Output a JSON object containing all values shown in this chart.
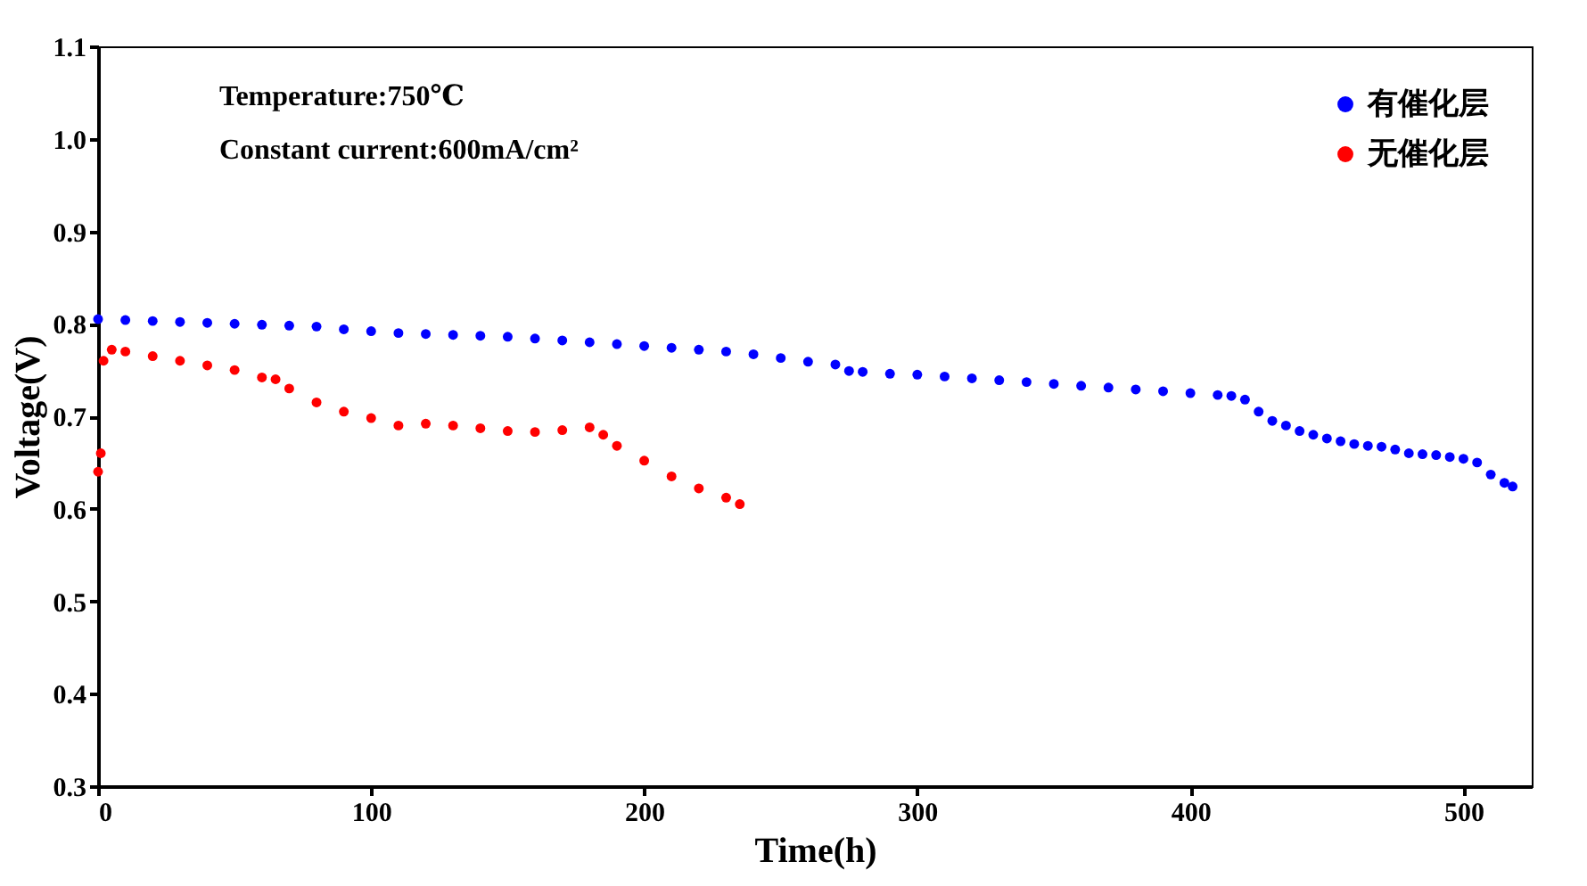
{
  "chart_data": {
    "type": "scatter",
    "xlabel": "Time(h)",
    "ylabel": "Voltage(V)",
    "annotations": [
      "Temperature:750℃",
      "Constant current:600mA/cm²"
    ],
    "xlim": [
      0,
      525
    ],
    "xticks": [
      0,
      100,
      200,
      300,
      400,
      500
    ],
    "ylim": [
      0.3,
      1.1
    ],
    "yticks": [
      {
        "value": 0.3,
        "label": "0.3"
      },
      {
        "value": 0.4,
        "label": "0.4"
      },
      {
        "value": 0.5,
        "label": "0.5"
      },
      {
        "value": 0.6,
        "label": "0.6"
      },
      {
        "value": 0.7,
        "label": "0.7"
      },
      {
        "value": 0.8,
        "label": "0.8"
      },
      {
        "value": 0.9,
        "label": "0.9"
      },
      {
        "value": 1.0,
        "label": "1.0"
      },
      {
        "value": 1.1,
        "label": "1.1"
      }
    ],
    "grid": false,
    "legend": "top right",
    "marker": "circle",
    "series": [
      {
        "name": "有催化层",
        "color": "#0000ff",
        "x": [
          0,
          10,
          20,
          30,
          40,
          50,
          60,
          70,
          80,
          90,
          100,
          110,
          120,
          130,
          140,
          150,
          160,
          170,
          180,
          190,
          200,
          210,
          220,
          230,
          240,
          250,
          260,
          270,
          275,
          280,
          290,
          300,
          310,
          320,
          330,
          340,
          350,
          360,
          370,
          380,
          390,
          400,
          410,
          415,
          420,
          425,
          430,
          435,
          440,
          445,
          450,
          455,
          460,
          465,
          470,
          475,
          480,
          485,
          490,
          495,
          500,
          505,
          510,
          515,
          518
        ],
        "values": [
          0.805,
          0.804,
          0.803,
          0.802,
          0.801,
          0.8,
          0.799,
          0.798,
          0.797,
          0.794,
          0.792,
          0.79,
          0.789,
          0.788,
          0.787,
          0.786,
          0.784,
          0.782,
          0.78,
          0.778,
          0.776,
          0.774,
          0.772,
          0.77,
          0.767,
          0.763,
          0.759,
          0.756,
          0.749,
          0.748,
          0.746,
          0.745,
          0.743,
          0.741,
          0.739,
          0.737,
          0.735,
          0.733,
          0.731,
          0.729,
          0.727,
          0.725,
          0.723,
          0.722,
          0.718,
          0.705,
          0.695,
          0.69,
          0.684,
          0.68,
          0.676,
          0.673,
          0.67,
          0.668,
          0.667,
          0.664,
          0.66,
          0.659,
          0.658,
          0.656,
          0.654,
          0.65,
          0.637,
          0.628,
          0.624
        ]
      },
      {
        "name": "无催化层",
        "color": "#ff0000",
        "x": [
          0,
          1,
          2,
          5,
          10,
          20,
          30,
          40,
          50,
          60,
          65,
          70,
          80,
          90,
          100,
          110,
          120,
          130,
          140,
          150,
          160,
          170,
          180,
          185,
          190,
          200,
          210,
          220,
          230,
          235
        ],
        "values": [
          0.64,
          0.66,
          0.76,
          0.772,
          0.77,
          0.765,
          0.76,
          0.755,
          0.75,
          0.742,
          0.74,
          0.73,
          0.715,
          0.705,
          0.698,
          0.69,
          0.692,
          0.69,
          0.687,
          0.684,
          0.683,
          0.685,
          0.688,
          0.68,
          0.668,
          0.652,
          0.635,
          0.622,
          0.612,
          0.605
        ]
      }
    ]
  }
}
